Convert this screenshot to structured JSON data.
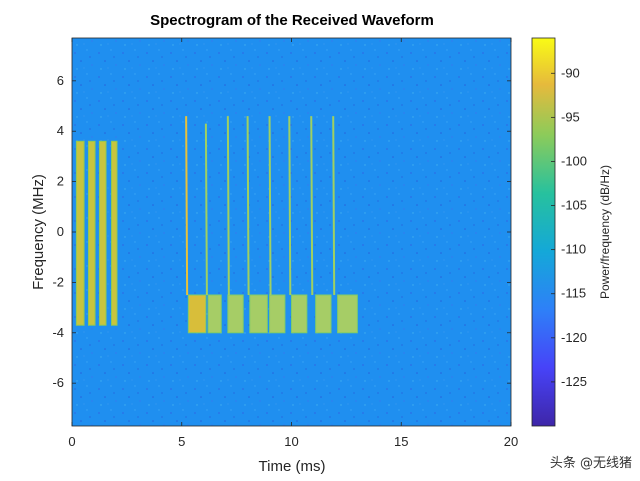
{
  "chart_data": {
    "type": "heatmap",
    "title": "Spectrogram of the Received Waveform",
    "xlabel": "Time (ms)",
    "ylabel": "Frequency (MHz)",
    "xlim": [
      0,
      20
    ],
    "ylim": [
      -7.7,
      7.7
    ],
    "xticks": [
      0,
      5,
      10,
      15,
      20
    ],
    "yticks": [
      -6,
      -4,
      -2,
      0,
      2,
      4,
      6
    ],
    "colorbar": {
      "label": "Power/frequency (dB/Hz)",
      "ticks": [
        -90,
        -95,
        -100,
        -105,
        -110,
        -115,
        -120,
        -125
      ],
      "range": [
        -130,
        -86
      ],
      "colormap": [
        "#3e26a8",
        "#4743f8",
        "#2e80f8",
        "#14a8d8",
        "#27c19e",
        "#8ccb5a",
        "#e6ba3c",
        "#f9fb15"
      ]
    },
    "background_color": "#1f8ff0",
    "pulse_group_1": {
      "freq_range": [
        -3.7,
        3.6
      ],
      "bursts": [
        [
          0.2,
          0.55
        ],
        [
          0.75,
          1.05
        ],
        [
          1.25,
          1.55
        ],
        [
          1.8,
          2.05
        ]
      ]
    },
    "pulse_group_2": {
      "chirp_lines": [
        {
          "t": 5.2,
          "f_top": 4.6
        },
        {
          "t": 6.1,
          "f_top": 4.3
        },
        {
          "t": 7.1,
          "f_top": 4.6
        },
        {
          "t": 8.0,
          "f_top": 4.6
        },
        {
          "t": 9.0,
          "f_top": 4.6
        },
        {
          "t": 9.9,
          "f_top": 4.6
        },
        {
          "t": 10.9,
          "f_top": 4.6
        },
        {
          "t": 11.9,
          "f_top": 4.6
        }
      ],
      "blocks_freq_range": [
        -4.0,
        -2.5
      ],
      "blocks": [
        [
          5.3,
          6.1
        ],
        [
          6.2,
          6.8
        ],
        [
          7.1,
          7.8
        ],
        [
          8.1,
          8.9
        ],
        [
          9.0,
          9.7
        ],
        [
          10.0,
          10.7
        ],
        [
          11.1,
          11.8
        ],
        [
          12.1,
          13.0
        ]
      ]
    }
  },
  "watermark": "头条 @无线猪"
}
